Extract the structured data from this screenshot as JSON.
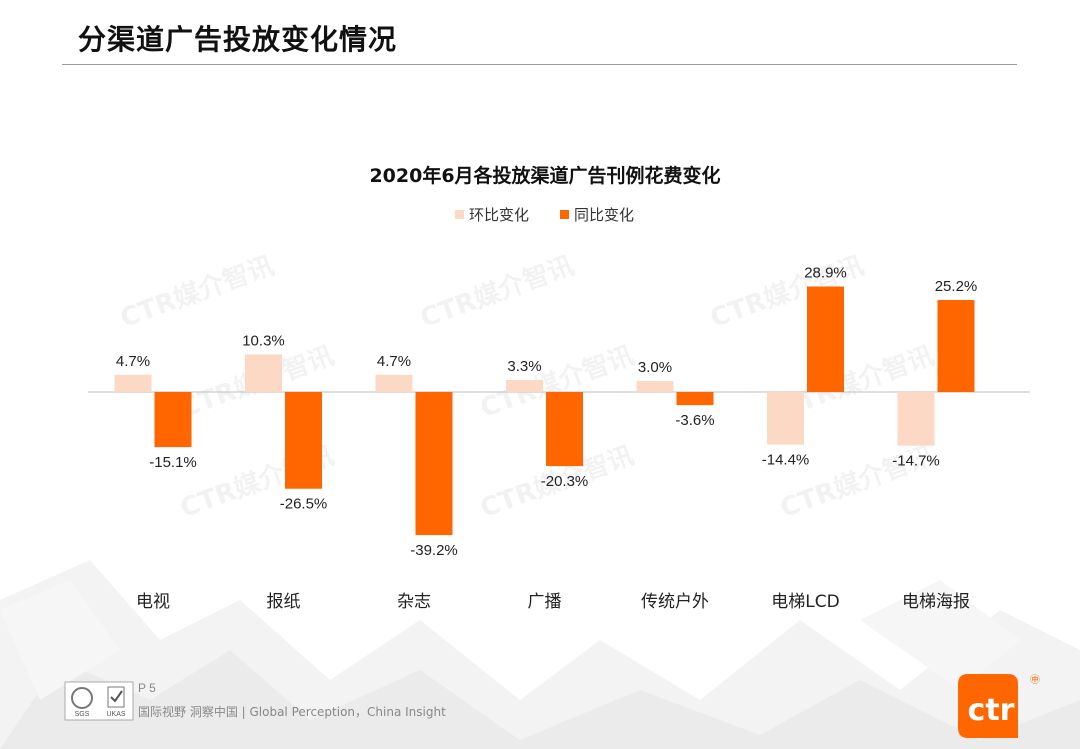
{
  "page": {
    "title": "分渠道广告投放变化情况"
  },
  "watermark": {
    "text": "CTR媒介智讯"
  },
  "chart_data": {
    "type": "bar",
    "title": "2020年6月各投放渠道广告刊例花费变化",
    "categories": [
      "电视",
      "报纸",
      "杂志",
      "广播",
      "传统户外",
      "电梯LCD",
      "电梯海报"
    ],
    "series": [
      {
        "name": "环比变化",
        "color": "#fbd9c4",
        "values": [
          4.7,
          10.3,
          4.7,
          3.3,
          3.0,
          -14.4,
          -14.7
        ],
        "labels": [
          "4.7%",
          "10.3%",
          "4.7%",
          "3.3%",
          "3.0%",
          "-14.4%",
          "-14.7%"
        ]
      },
      {
        "name": "同比变化",
        "color": "#ff6600",
        "values": [
          -15.1,
          -26.5,
          -39.2,
          -20.3,
          -3.6,
          28.9,
          25.2
        ],
        "labels": [
          "-15.1%",
          "-26.5%",
          "-39.2%",
          "-20.3%",
          "-3.6%",
          "28.9%",
          "25.2%"
        ]
      }
    ],
    "legend_position": "top-center",
    "grid": false,
    "ylim": [
      -45,
      35
    ]
  },
  "footer": {
    "page_label": "P 5",
    "tagline": "国际视野  洞察中国 |  Global Perception，China Insight",
    "cert1": "SGS",
    "cert2": "UKAS",
    "logo_text": "ctr",
    "logo_mark": "㊥"
  }
}
